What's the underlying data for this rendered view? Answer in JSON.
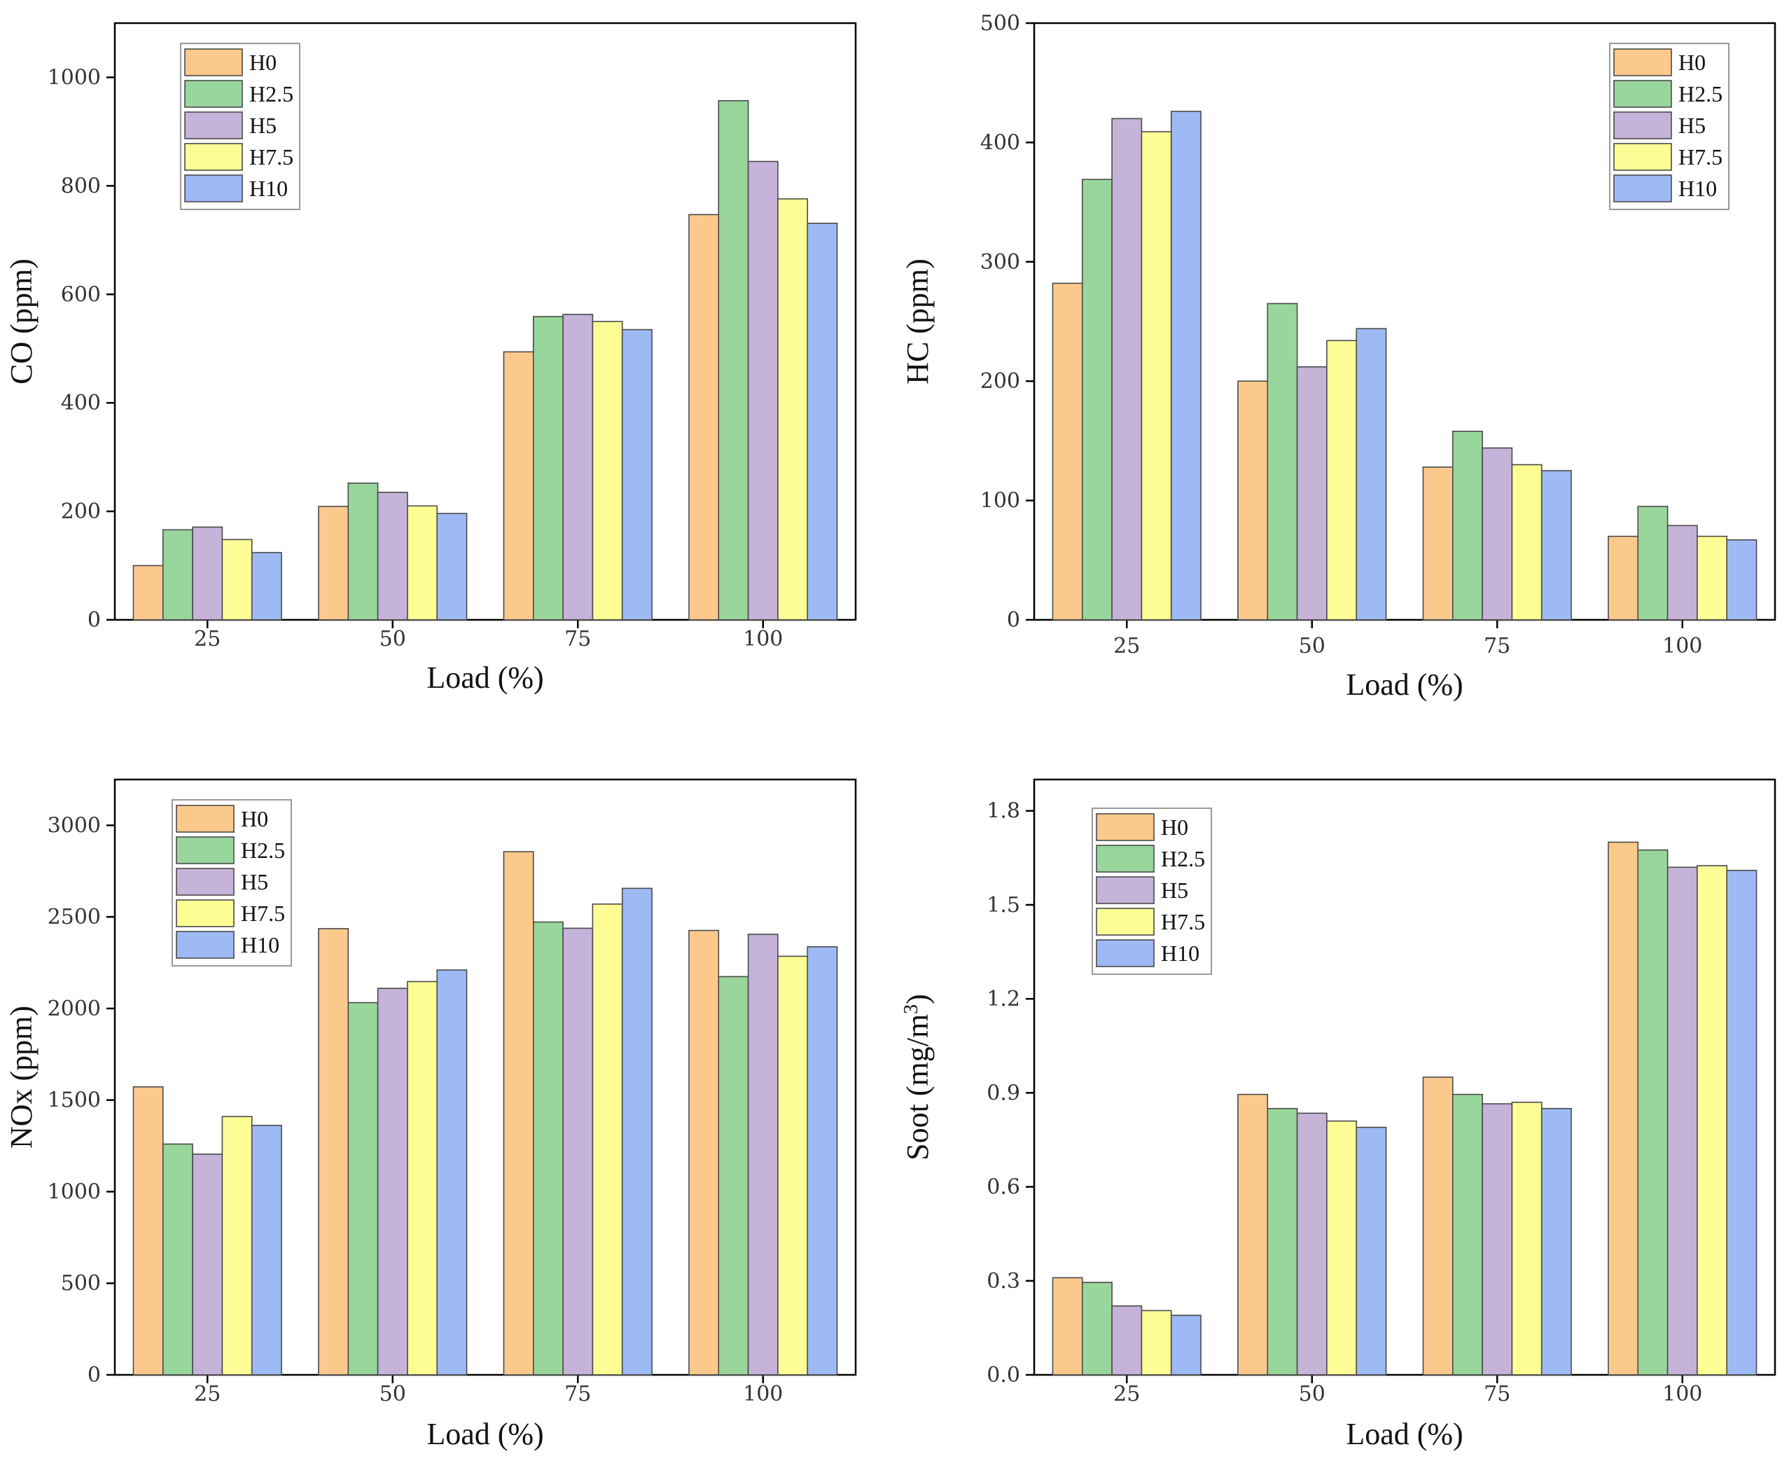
{
  "chart_data": [
    {
      "type": "bar",
      "title": "",
      "xlabel": "Load (%)",
      "ylabel": "CO (ppm)",
      "categories": [
        "25",
        "50",
        "75",
        "100"
      ],
      "ylim": [
        0,
        1100
      ],
      "yticks": [
        0,
        200,
        400,
        600,
        800,
        1000
      ],
      "ytick_labels": [
        "0",
        "200",
        "400",
        "600",
        "800",
        "1000"
      ],
      "legend_position": "top-left",
      "series": [
        {
          "name": "H0",
          "values": [
            100,
            209,
            494,
            747
          ]
        },
        {
          "name": "H2.5",
          "values": [
            166,
            252,
            559,
            957
          ]
        },
        {
          "name": "H5",
          "values": [
            171,
            235,
            563,
            845
          ]
        },
        {
          "name": "H7.5",
          "values": [
            148,
            210,
            550,
            776
          ]
        },
        {
          "name": "H10",
          "values": [
            124,
            196,
            535,
            731
          ]
        }
      ]
    },
    {
      "type": "bar",
      "title": "",
      "xlabel": "Load (%)",
      "ylabel": "HC (ppm)",
      "categories": [
        "25",
        "50",
        "75",
        "100"
      ],
      "ylim": [
        0,
        500
      ],
      "yticks": [
        0,
        100,
        200,
        300,
        400,
        500
      ],
      "ytick_labels": [
        "0",
        "100",
        "200",
        "300",
        "400",
        "500"
      ],
      "legend_position": "top-right",
      "series": [
        {
          "name": "H0",
          "values": [
            282,
            200,
            128,
            70
          ]
        },
        {
          "name": "H2.5",
          "values": [
            369,
            265,
            158,
            95
          ]
        },
        {
          "name": "H5",
          "values": [
            420,
            212,
            144,
            79
          ]
        },
        {
          "name": "H7.5",
          "values": [
            409,
            234,
            130,
            70
          ]
        },
        {
          "name": "H10",
          "values": [
            426,
            244,
            125,
            67
          ]
        }
      ]
    },
    {
      "type": "bar",
      "title": "",
      "xlabel": "Load (%)",
      "ylabel": "NOx (ppm)",
      "categories": [
        "25",
        "50",
        "75",
        "100"
      ],
      "ylim": [
        0,
        3250
      ],
      "yticks": [
        0,
        500,
        1000,
        1500,
        2000,
        2500,
        3000
      ],
      "ytick_labels": [
        "0",
        "500",
        "1000",
        "1500",
        "2000",
        "2500",
        "3000"
      ],
      "legend_position": "top-left",
      "series": [
        {
          "name": "H0",
          "values": [
            1572,
            2436,
            2856,
            2426
          ]
        },
        {
          "name": "H2.5",
          "values": [
            1260,
            2032,
            2472,
            2174
          ]
        },
        {
          "name": "H5",
          "values": [
            1205,
            2110,
            2438,
            2405
          ]
        },
        {
          "name": "H7.5",
          "values": [
            1410,
            2147,
            2570,
            2285
          ]
        },
        {
          "name": "H10",
          "values": [
            1362,
            2210,
            2656,
            2337
          ]
        }
      ]
    },
    {
      "type": "bar",
      "title": "",
      "xlabel": "Load (%)",
      "ylabel": "Soot (mg/m",
      "ylabel_superscript": "3",
      "ylabel_suffix": ")",
      "categories": [
        "25",
        "50",
        "75",
        "100"
      ],
      "ylim": [
        0,
        1.9
      ],
      "yticks": [
        0,
        0.3,
        0.6,
        0.9,
        1.2,
        1.5,
        1.8
      ],
      "ytick_labels": [
        "0.0",
        "0.3",
        "0.6",
        "0.9",
        "1.2",
        "1.5",
        "1.8"
      ],
      "legend_position": "top-left",
      "series": [
        {
          "name": "H0",
          "values": [
            0.31,
            0.895,
            0.95,
            1.7
          ]
        },
        {
          "name": "H2.5",
          "values": [
            0.295,
            0.85,
            0.895,
            1.675
          ]
        },
        {
          "name": "H5",
          "values": [
            0.22,
            0.835,
            0.865,
            1.62
          ]
        },
        {
          "name": "H7.5",
          "values": [
            0.205,
            0.81,
            0.87,
            1.625
          ]
        },
        {
          "name": "H10",
          "values": [
            0.19,
            0.79,
            0.85,
            1.61
          ]
        }
      ]
    }
  ],
  "colors": [
    "#fcc98d",
    "#99d69c",
    "#c5b3d9",
    "#fefd95",
    "#9ebaf5"
  ]
}
